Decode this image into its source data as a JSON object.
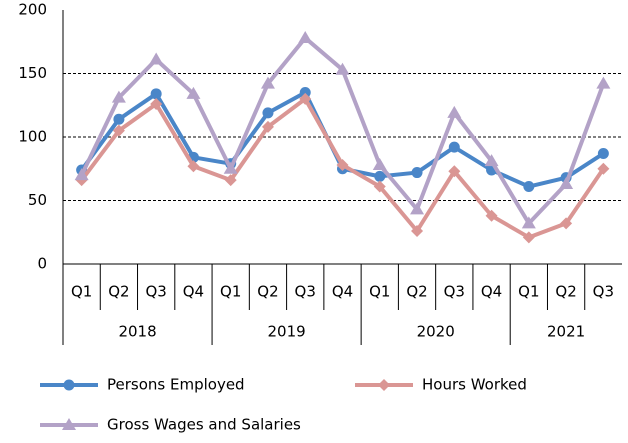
{
  "chart_data": {
    "type": "line",
    "categories": [
      "Q1",
      "Q2",
      "Q3",
      "Q4",
      "Q1",
      "Q2",
      "Q3",
      "Q4",
      "Q1",
      "Q2",
      "Q3",
      "Q4",
      "Q1",
      "Q2",
      "Q3"
    ],
    "category_groups": [
      "2018",
      "2018",
      "2018",
      "2018",
      "2019",
      "2019",
      "2019",
      "2019",
      "2020",
      "2020",
      "2020",
      "2020",
      "2021",
      "2021",
      "2021"
    ],
    "series": [
      {
        "name": "Persons Employed",
        "color": "#4a86c8",
        "marker": "circle",
        "values": [
          74,
          114,
          134,
          84,
          79,
          119,
          135,
          75,
          69,
          72,
          92,
          74,
          61,
          68,
          87
        ]
      },
      {
        "name": "Hours Worked",
        "color": "#da9694",
        "marker": "diamond",
        "values": [
          66,
          105,
          126,
          77,
          66,
          108,
          130,
          78,
          61,
          26,
          73,
          38,
          21,
          32,
          75
        ]
      },
      {
        "name": "Gross Wages and Salaries",
        "color": "#b3a2c7",
        "marker": "triangle",
        "values": [
          70,
          131,
          161,
          134,
          75,
          142,
          178,
          153,
          78,
          43,
          119,
          81,
          32,
          63,
          142
        ]
      }
    ],
    "ylim": [
      0,
      200
    ],
    "yticks": [
      0,
      50,
      100,
      150,
      200
    ],
    "grid": true,
    "legend": "bottom"
  }
}
